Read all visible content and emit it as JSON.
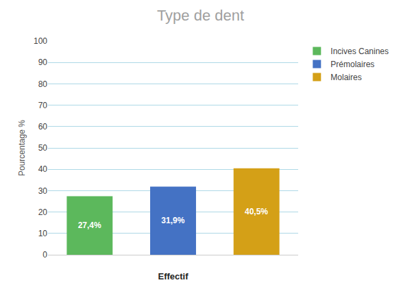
{
  "chart_data": {
    "type": "bar",
    "title": "Type de dent",
    "xlabel": "Effectif",
    "ylabel": "Pourcentage %",
    "categories": [
      "Incives Canines",
      "Prémolaires",
      "Molaires"
    ],
    "values": [
      27.4,
      31.9,
      40.5
    ],
    "value_labels": [
      "27,4%",
      "31,9%",
      "40,5%"
    ],
    "colors": [
      "#5cb85c",
      "#4472c4",
      "#d4a017"
    ],
    "ylim": [
      0,
      100
    ],
    "yticks": [
      0,
      10,
      20,
      30,
      40,
      50,
      60,
      70,
      80,
      90,
      100
    ],
    "grid": true,
    "legend": "upper right",
    "data_labels": true,
    "tick_labels": "y"
  }
}
